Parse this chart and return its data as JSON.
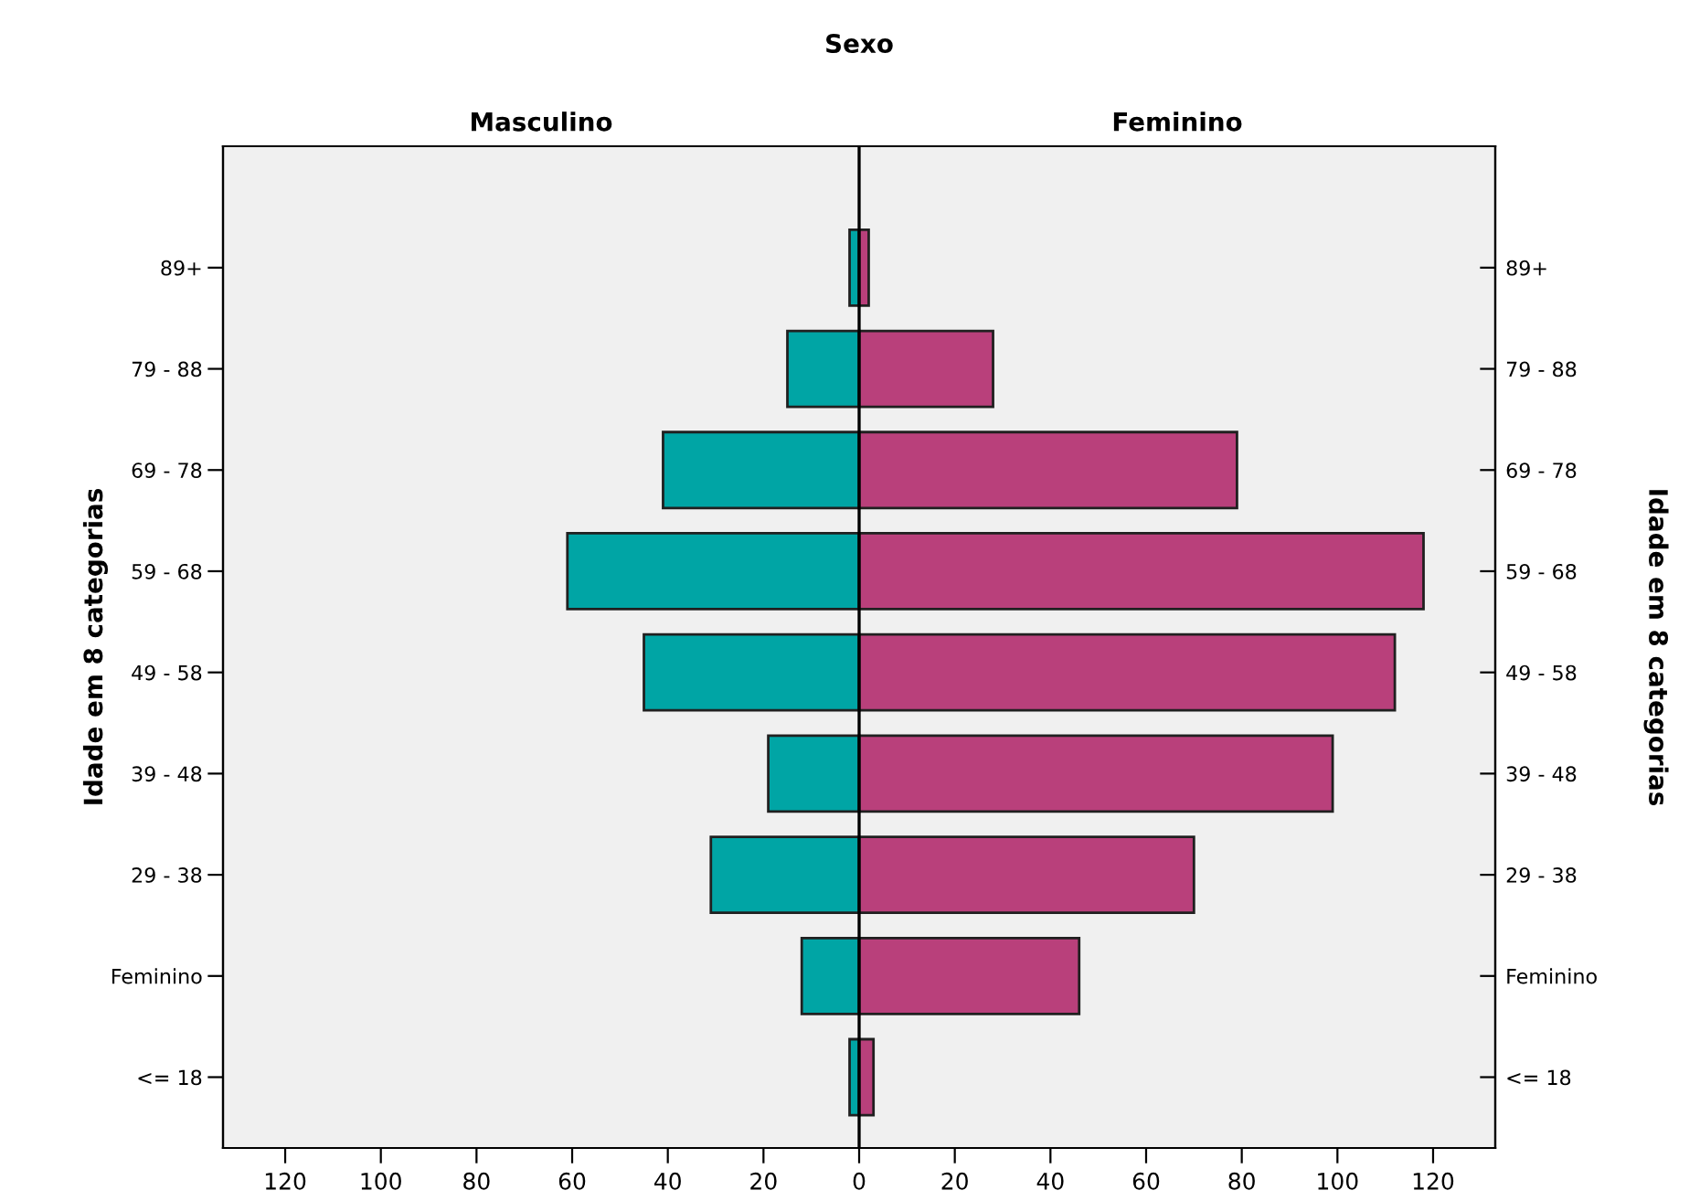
{
  "chart_data": {
    "type": "bar",
    "orientation": "horizontal",
    "stacked": true,
    "title": "Sexo",
    "ylabel": "Idade em 8 categorias",
    "y2label": "Idade em 8 categorias",
    "annotations": [
      "Masculino",
      "Feminino"
    ],
    "categories": [
      "89+",
      "79 - 88",
      "69 - 78",
      "59 - 68",
      "49 - 58",
      "39 - 48",
      "29 - 38",
      "Feminino",
      "<= 18"
    ],
    "series": [
      {
        "color": "#00a5a5",
        "values": [
          -2,
          -15,
          -41,
          -61,
          -45,
          -19,
          -31,
          -12,
          -2
        ]
      },
      {
        "color": "#b9407b",
        "values": [
          2,
          28,
          79,
          118,
          112,
          99,
          70,
          46,
          3
        ]
      }
    ],
    "xlim": [
      -133,
      133
    ],
    "xticks": [
      {
        "value": -120,
        "label": "120"
      },
      {
        "value": -100,
        "label": "100"
      },
      {
        "value": -80,
        "label": "80"
      },
      {
        "value": -60,
        "label": "60"
      },
      {
        "value": -40,
        "label": "40"
      },
      {
        "value": -20,
        "label": "20"
      },
      0,
      20,
      40,
      60,
      80,
      100,
      120
    ],
    "ref_lines": [
      {
        "axis": "x",
        "value": 0,
        "color": "#000000"
      }
    ],
    "grid": false,
    "legend": false
  }
}
